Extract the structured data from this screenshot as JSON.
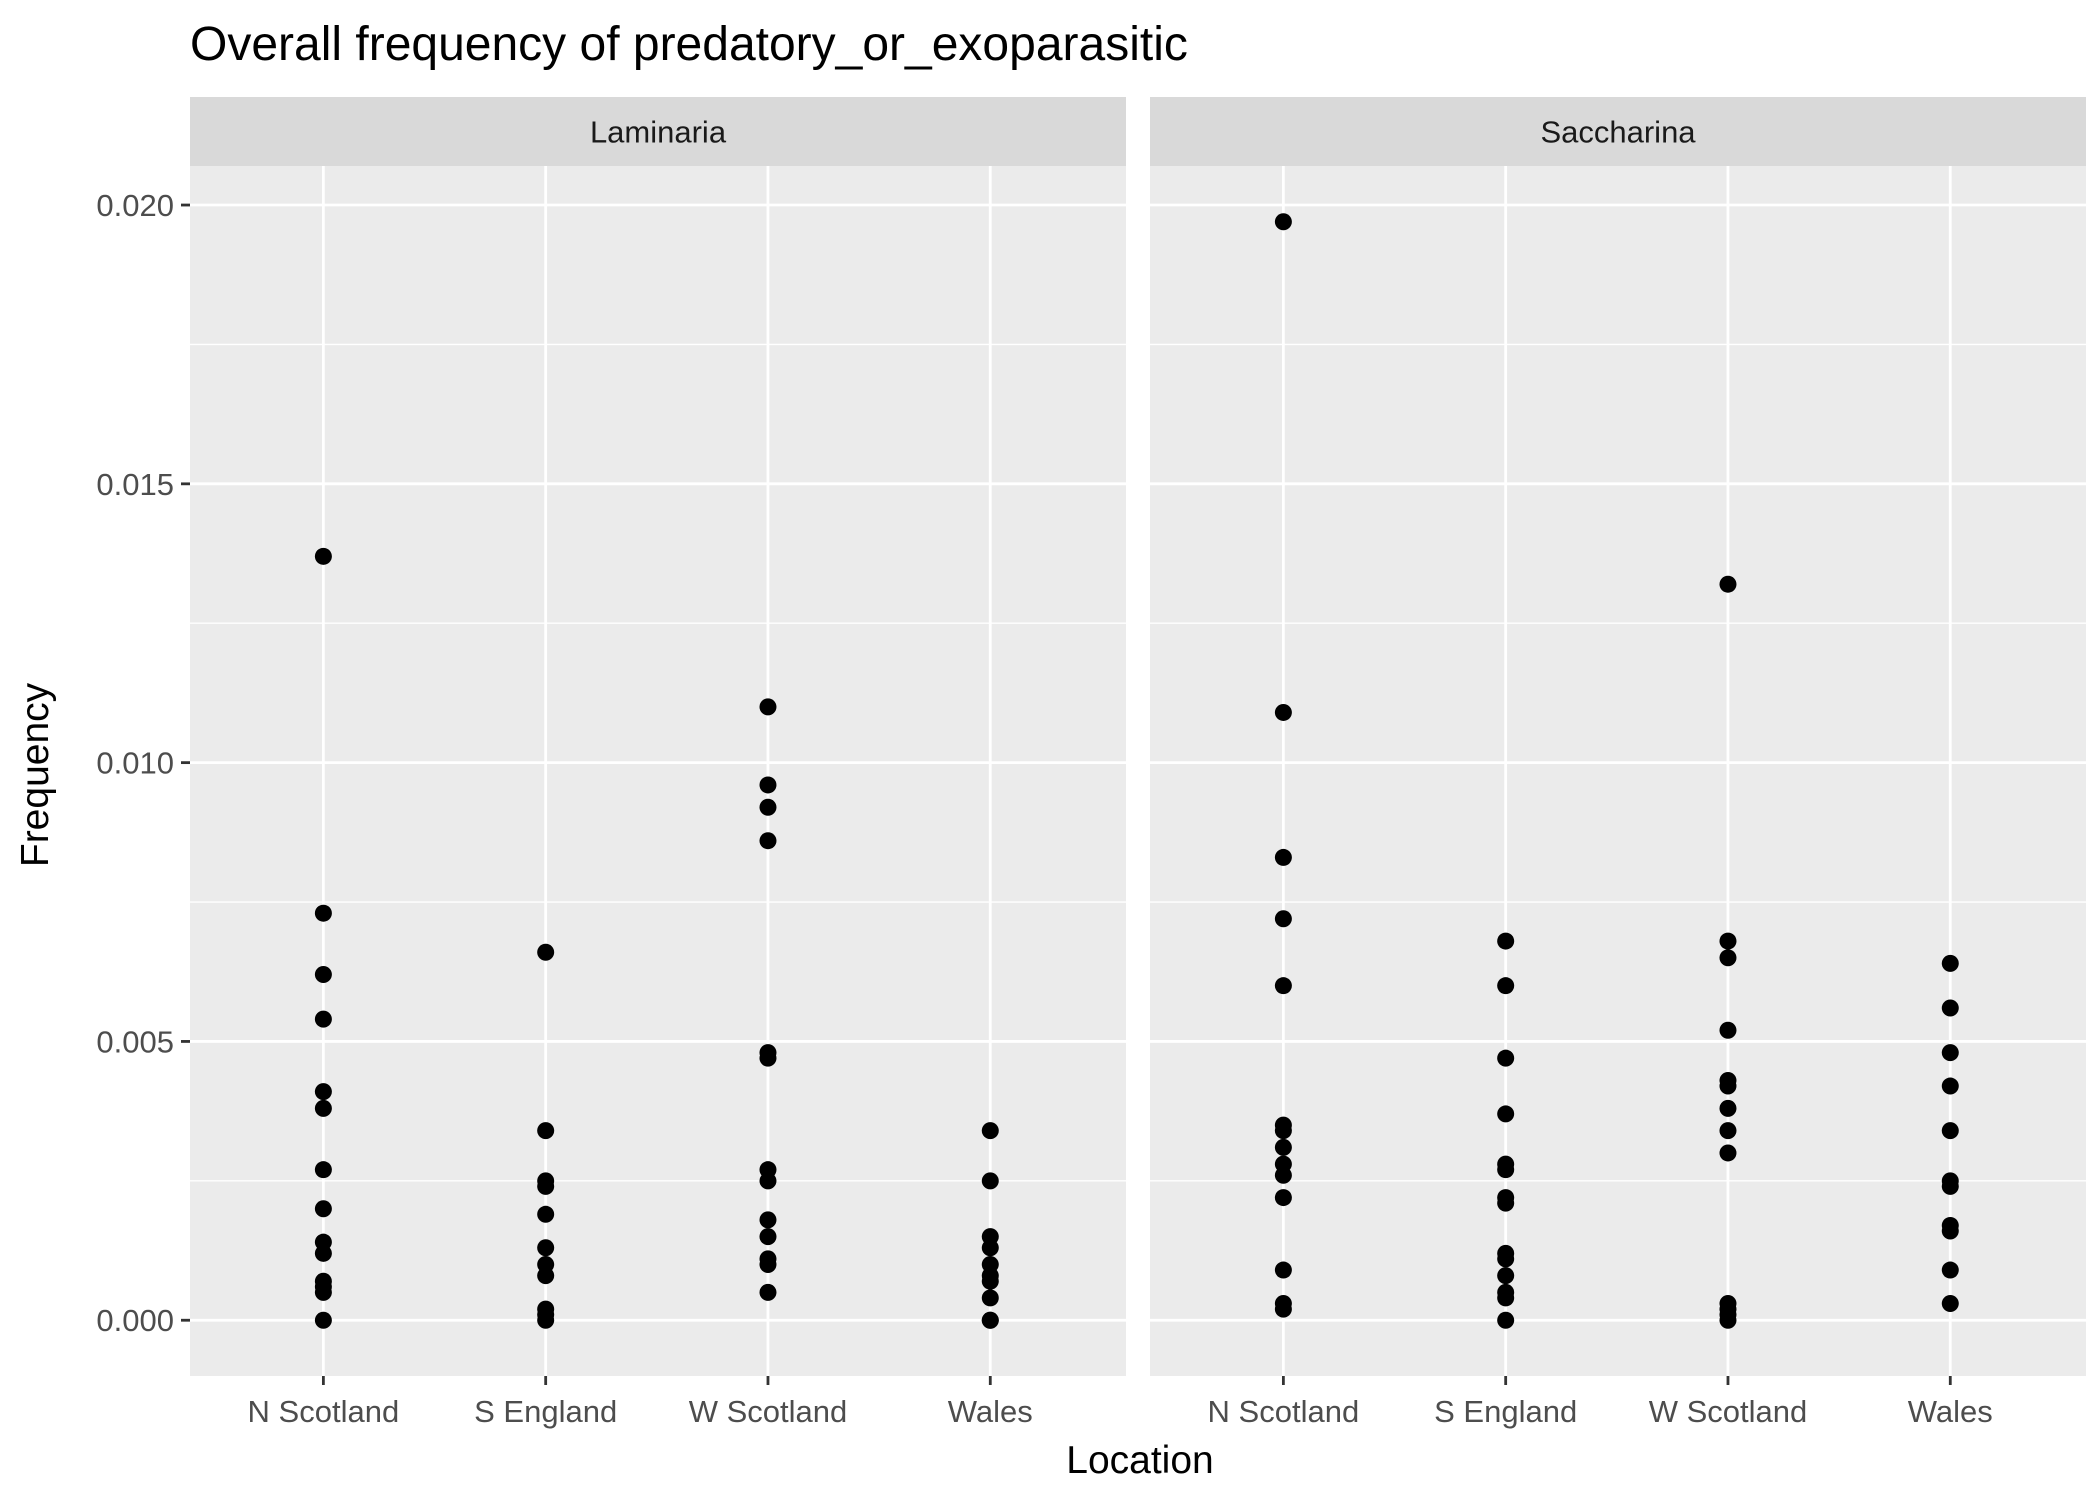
{
  "chart_data": {
    "type": "scatter",
    "title": "Overall frequency of predatory_or_exoparasitic",
    "xlabel": "Location",
    "ylabel": "Frequency",
    "ylim": [
      -0.001,
      0.0207
    ],
    "yticks": [
      "0.000",
      "0.005",
      "0.010",
      "0.015",
      "0.020"
    ],
    "categories": [
      "N Scotland",
      "S England",
      "W Scotland",
      "Wales"
    ],
    "grid": true,
    "panels": [
      {
        "name": "Laminaria",
        "points": {
          "N Scotland": [
            0.0137,
            0.0073,
            0.0062,
            0.0054,
            0.0041,
            0.0038,
            0.0027,
            0.002,
            0.0014,
            0.0012,
            0.0007,
            0.0006,
            0.0005,
            0.0
          ],
          "S England": [
            0.0066,
            0.0034,
            0.0025,
            0.0024,
            0.0019,
            0.0013,
            0.001,
            0.0008,
            0.0002,
            0.0001,
            0.0
          ],
          "W Scotland": [
            0.011,
            0.0096,
            0.0092,
            0.0086,
            0.0048,
            0.0047,
            0.0027,
            0.0025,
            0.0018,
            0.0015,
            0.0011,
            0.001,
            0.0005
          ],
          "Wales": [
            0.0034,
            0.0025,
            0.0015,
            0.0013,
            0.001,
            0.0008,
            0.0007,
            0.0004,
            0.0,
            0.0
          ]
        }
      },
      {
        "name": "Saccharina",
        "points": {
          "N Scotland": [
            0.0197,
            0.0109,
            0.0083,
            0.0072,
            0.006,
            0.0035,
            0.0034,
            0.0031,
            0.0028,
            0.0026,
            0.0022,
            0.0009,
            0.0003,
            0.0002
          ],
          "S England": [
            0.0068,
            0.006,
            0.0047,
            0.0037,
            0.0028,
            0.0027,
            0.0022,
            0.0021,
            0.0012,
            0.0011,
            0.0008,
            0.0005,
            0.0004,
            0.0
          ],
          "W Scotland": [
            0.0132,
            0.0068,
            0.0065,
            0.0052,
            0.0043,
            0.0042,
            0.0038,
            0.0034,
            0.003,
            0.0003,
            0.0002,
            0.0001,
            0.0
          ],
          "Wales": [
            0.0064,
            0.0056,
            0.0048,
            0.0042,
            0.0034,
            0.0025,
            0.0024,
            0.0017,
            0.0016,
            0.0009,
            0.0003
          ]
        }
      }
    ]
  },
  "colors": {
    "panel_background": "#EBEBEB",
    "strip_background": "#D9D9D9",
    "grid_major": "#FFFFFF",
    "grid_minor": "#F5F5F5",
    "point": "#000000",
    "tick": "#333333"
  }
}
